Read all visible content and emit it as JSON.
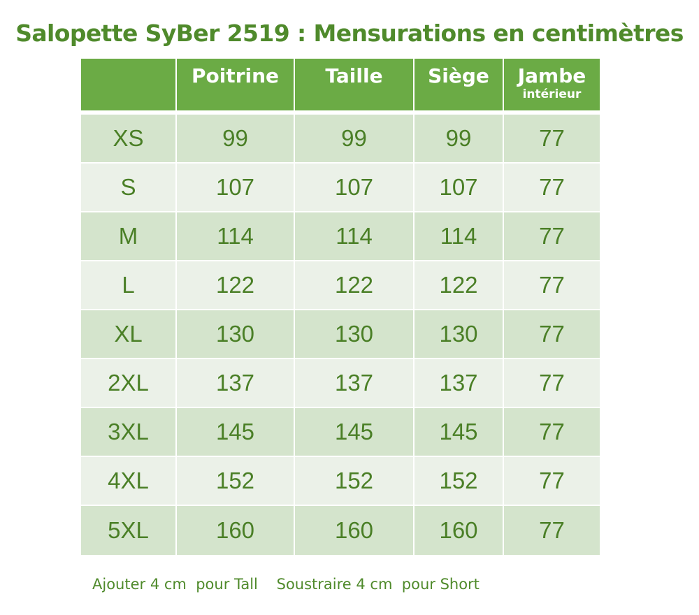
{
  "title": "Salopette SyBer 2519 : Mensurations en centimètres",
  "columns": [
    {
      "label": "",
      "sub": ""
    },
    {
      "label": "Poitrine",
      "sub": ""
    },
    {
      "label": "Taille",
      "sub": ""
    },
    {
      "label": "Siège",
      "sub": ""
    },
    {
      "label": "Jambe",
      "sub": "intérieur"
    }
  ],
  "rows": [
    {
      "size": "XS",
      "poitrine": "99",
      "taille": "99",
      "siege": "99",
      "jambe": "77"
    },
    {
      "size": "S",
      "poitrine": "107",
      "taille": "107",
      "siege": "107",
      "jambe": "77"
    },
    {
      "size": "M",
      "poitrine": "114",
      "taille": "114",
      "siege": "114",
      "jambe": "77"
    },
    {
      "size": "L",
      "poitrine": "122",
      "taille": "122",
      "siege": "122",
      "jambe": "77"
    },
    {
      "size": "XL",
      "poitrine": "130",
      "taille": "130",
      "siege": "130",
      "jambe": "77"
    },
    {
      "size": "2XL",
      "poitrine": "137",
      "taille": "137",
      "siege": "137",
      "jambe": "77"
    },
    {
      "size": "3XL",
      "poitrine": "145",
      "taille": "145",
      "siege": "145",
      "jambe": "77"
    },
    {
      "size": "4XL",
      "poitrine": "152",
      "taille": "152",
      "siege": "152",
      "jambe": "77"
    },
    {
      "size": "5XL",
      "poitrine": "160",
      "taille": "160",
      "siege": "160",
      "jambe": "77"
    }
  ],
  "footnote": {
    "tall": "Ajouter 4 cm  pour Tall",
    "short": "Soustraire 4 cm  pour Short"
  },
  "colors": {
    "header_green": "#6bab45",
    "text_green": "#4f8a2b",
    "row_dark": "#d4e4cc",
    "row_light": "#ebf1e8"
  }
}
